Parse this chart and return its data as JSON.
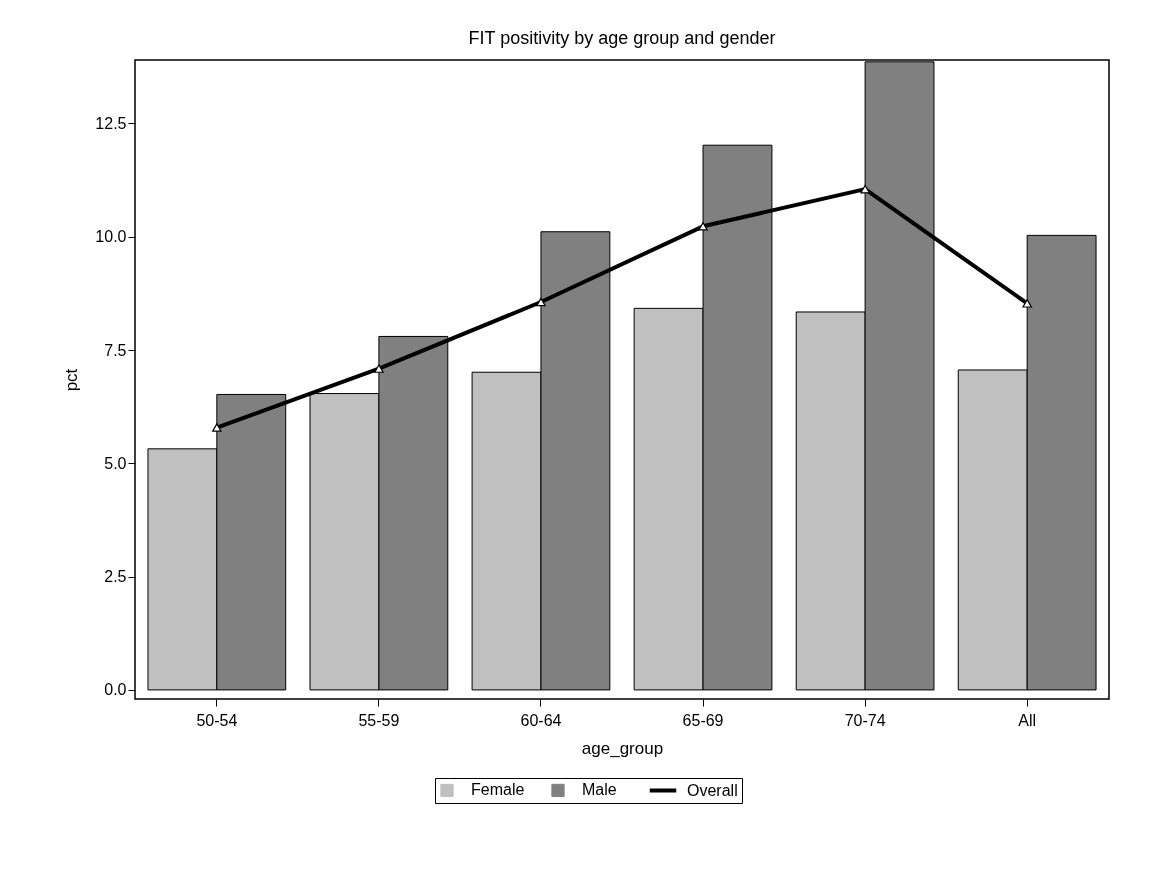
{
  "chart_data": {
    "type": "bar",
    "title": "FIT positivity by age group and gender",
    "xlabel": "age_group",
    "ylabel": "pct",
    "categories": [
      "50-54",
      "55-59",
      "60-64",
      "65-69",
      "70-74",
      "All"
    ],
    "series": [
      {
        "name": "Female",
        "color": "#c0c0c0",
        "values": [
          5.32,
          6.54,
          7.01,
          8.42,
          8.34,
          7.06
        ]
      },
      {
        "name": "Male",
        "color": "#808080",
        "values": [
          6.52,
          7.8,
          10.11,
          12.02,
          13.86,
          10.03
        ]
      },
      {
        "name": "Overall",
        "type": "line",
        "color": "#000000",
        "marker": "triangle",
        "values": [
          5.79,
          7.09,
          8.56,
          10.23,
          11.05,
          8.53
        ]
      }
    ],
    "ylim": [
      -0.2,
      13.9
    ],
    "yticks": [
      {
        "value": 0,
        "label": "0.0"
      },
      2.5,
      {
        "value": 5,
        "label": "5.0"
      },
      7.5,
      {
        "value": 10,
        "label": "10.0"
      },
      12.5
    ],
    "grid": false,
    "legend": "bottom"
  }
}
